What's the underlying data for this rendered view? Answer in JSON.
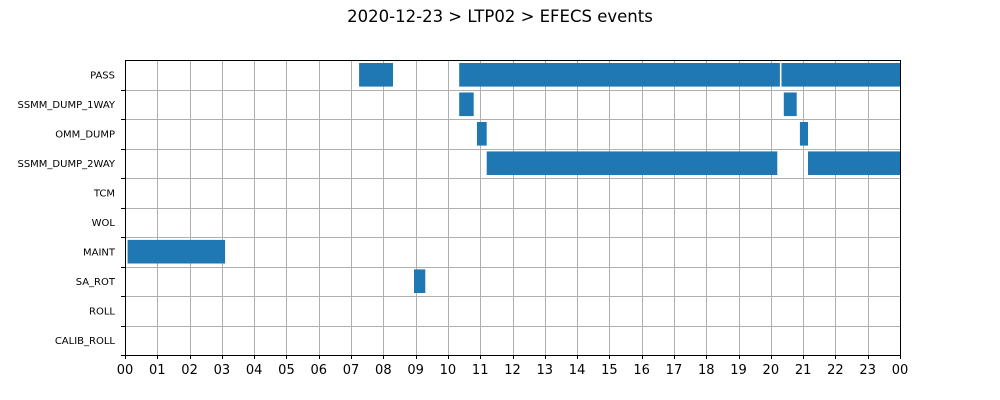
{
  "chart_data": {
    "type": "bar",
    "subtype": "gantt",
    "title": "2020-12-23 > LTP02 > EFECS events",
    "xlabel": "",
    "ylabel": "",
    "x_unit": "hour of day",
    "xlim": [
      0,
      24
    ],
    "x_tick_labels": [
      "00",
      "01",
      "02",
      "03",
      "04",
      "05",
      "06",
      "07",
      "08",
      "09",
      "10",
      "11",
      "12",
      "13",
      "14",
      "15",
      "16",
      "17",
      "18",
      "19",
      "20",
      "21",
      "22",
      "23",
      "00"
    ],
    "grid": true,
    "legend": "none",
    "bar_color": "#1f77b4",
    "categories": [
      "PASS",
      "SSMM_DUMP_1WAY",
      "OMM_DUMP",
      "SSMM_DUMP_2WAY",
      "TCM",
      "WOL",
      "MAINT",
      "SA_ROT",
      "ROLL",
      "CALIB_ROLL"
    ],
    "events": [
      {
        "category": "PASS",
        "start": 7.25,
        "end": 8.3
      },
      {
        "category": "PASS",
        "start": 10.35,
        "end": 20.28
      },
      {
        "category": "PASS",
        "start": 20.33,
        "end": 24.0
      },
      {
        "category": "SSMM_DUMP_1WAY",
        "start": 10.35,
        "end": 10.8
      },
      {
        "category": "SSMM_DUMP_1WAY",
        "start": 20.4,
        "end": 20.8
      },
      {
        "category": "OMM_DUMP",
        "start": 10.9,
        "end": 11.2
      },
      {
        "category": "OMM_DUMP",
        "start": 20.9,
        "end": 21.15
      },
      {
        "category": "SSMM_DUMP_2WAY",
        "start": 11.2,
        "end": 20.2
      },
      {
        "category": "SSMM_DUMP_2WAY",
        "start": 21.15,
        "end": 24.0
      },
      {
        "category": "MAINT",
        "start": 0.08,
        "end": 3.1
      },
      {
        "category": "SA_ROT",
        "start": 8.95,
        "end": 9.3
      }
    ]
  }
}
